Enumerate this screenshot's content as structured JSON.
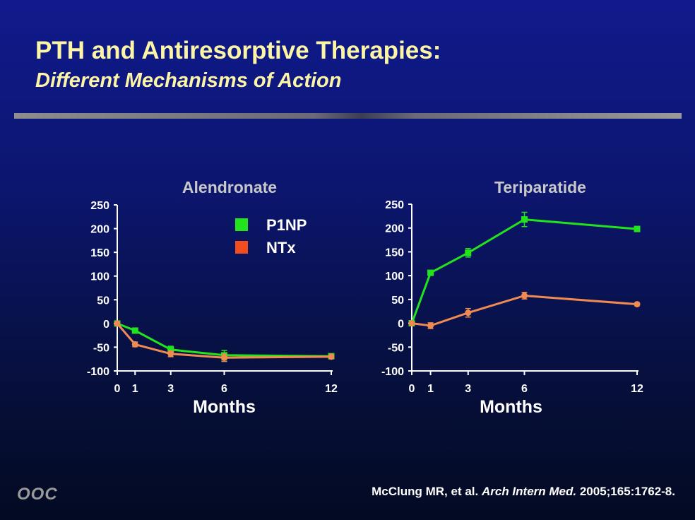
{
  "slide": {
    "title": "PTH and Antiresorptive Therapies:",
    "subtitle": "Different Mechanisms of Action",
    "logo": "OOC",
    "citation": {
      "authors": "McClung MR, et al.",
      "journal": "Arch Intern Med.",
      "details": "2005;165:1762-8."
    }
  },
  "colors": {
    "title_text": "#fcf5a6",
    "p1np": "#22e41c",
    "ntx": "#f08a52",
    "ntx_legend": "#f24d1e",
    "axis": "#ffffff",
    "chart_title": "#c8c8c8"
  },
  "legend": [
    {
      "label": "P1NP",
      "color_key": "p1np"
    },
    {
      "label": "NTx",
      "color_key": "ntx_legend"
    }
  ],
  "chart_data": [
    {
      "type": "line",
      "title": "Alendronate",
      "xlabel": "Months",
      "ylabel": "",
      "x": [
        0,
        1,
        3,
        6,
        12
      ],
      "x_ticks": [
        "0",
        "1",
        "3",
        "6",
        "12"
      ],
      "xlim": [
        0,
        12
      ],
      "ylim": [
        -100,
        250
      ],
      "y_ticks": [
        "250",
        "200",
        "150",
        "100",
        "50",
        "0",
        "-50",
        "-100"
      ],
      "grid": false,
      "legend_position": "top-right",
      "series": [
        {
          "name": "P1NP",
          "color_key": "p1np",
          "marker": "square",
          "values": [
            0,
            -15,
            -55,
            -67,
            -69
          ],
          "errors": [
            0,
            3,
            7,
            10,
            3
          ]
        },
        {
          "name": "NTx",
          "color_key": "ntx",
          "marker": "circle",
          "values": [
            0,
            -44,
            -64,
            -72,
            -70
          ],
          "errors": [
            0,
            5,
            6,
            8,
            3
          ]
        }
      ]
    },
    {
      "type": "line",
      "title": "Teriparatide",
      "xlabel": "Months",
      "ylabel": "",
      "x": [
        0,
        1,
        3,
        6,
        12
      ],
      "x_ticks": [
        "0",
        "1",
        "3",
        "6",
        "12"
      ],
      "xlim": [
        0,
        12
      ],
      "ylim": [
        -100,
        250
      ],
      "y_ticks": [
        "250",
        "200",
        "150",
        "100",
        "50",
        "0",
        "-50",
        "-100"
      ],
      "grid": false,
      "series": [
        {
          "name": "P1NP",
          "color_key": "p1np",
          "marker": "square",
          "values": [
            0,
            106,
            148,
            218,
            198
          ],
          "errors": [
            0,
            5,
            9,
            15,
            3
          ]
        },
        {
          "name": "NTx",
          "color_key": "ntx",
          "marker": "circle",
          "values": [
            0,
            -5,
            22,
            58,
            40
          ],
          "errors": [
            0,
            6,
            9,
            7,
            3
          ]
        }
      ]
    }
  ]
}
